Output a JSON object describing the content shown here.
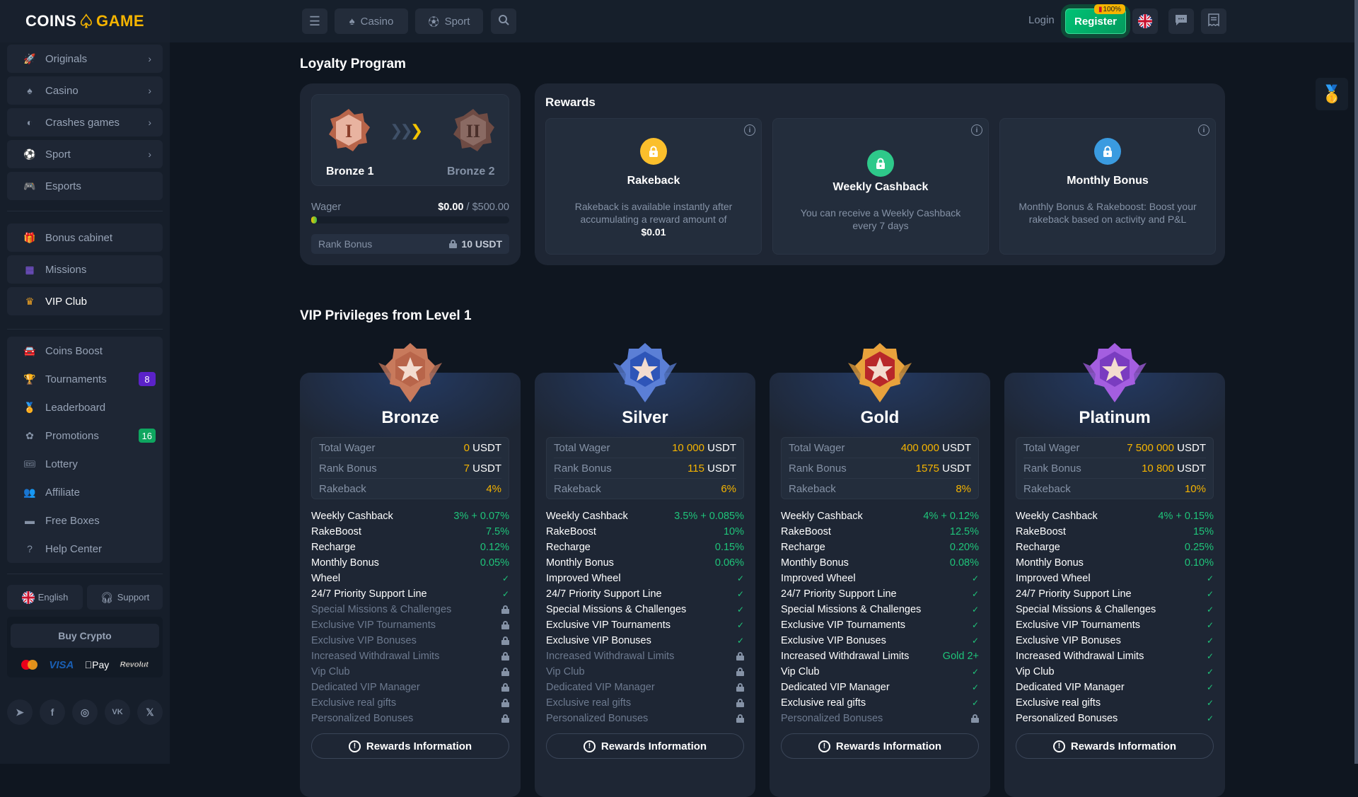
{
  "brand": {
    "left": "COINS",
    "right": "GAME"
  },
  "header": {
    "casino": "Casino",
    "sport": "Sport",
    "login": "Login",
    "register": "Register",
    "register_badge": "100%"
  },
  "sidebar": {
    "nav": [
      {
        "label": "Originals",
        "icon": "rocket-icon",
        "g": "🚀"
      },
      {
        "label": "Casino",
        "icon": "spade-icon",
        "g": "♠"
      },
      {
        "label": "Crashes games",
        "icon": "crash-icon",
        "g": "◐"
      },
      {
        "label": "Sport",
        "icon": "ball-icon",
        "g": "⚽"
      },
      {
        "label": "Esports",
        "icon": "gamepad-icon",
        "g": "🎮"
      }
    ],
    "nav2": [
      {
        "label": "Bonus cabinet",
        "icon": "gift-icon",
        "g": "🎁"
      },
      {
        "label": "Missions",
        "icon": "grid-icon",
        "g": "▦"
      },
      {
        "label": "VIP Club",
        "icon": "crown-icon",
        "g": "♛"
      }
    ],
    "nav3": [
      {
        "label": "Coins Boost",
        "icon": "car-icon",
        "g": "🚘"
      },
      {
        "label": "Tournaments",
        "icon": "tournament-icon",
        "g": "🏆",
        "badge": "8",
        "badge_color": "#5b22c9"
      },
      {
        "label": "Leaderboard",
        "icon": "medal-icon",
        "g": "🏅"
      },
      {
        "label": "Promotions",
        "icon": "promo-icon",
        "g": "✿",
        "badge": "16",
        "badge_color": "#0fa660"
      },
      {
        "label": "Lottery",
        "icon": "ticket-icon",
        "g": "🎟"
      },
      {
        "label": "Affiliate",
        "icon": "people-icon",
        "g": "👥"
      },
      {
        "label": "Free Boxes",
        "icon": "box-icon",
        "g": "▬"
      },
      {
        "label": "Help Center",
        "icon": "help-icon",
        "g": "?"
      }
    ],
    "language": "English",
    "support": "Support",
    "buy_crypto": "Buy Crypto",
    "payments": [
      "VISA",
      "Pay",
      "Revolut"
    ]
  },
  "loyalty": {
    "title": "Loyalty Program",
    "current_rank": "Bronze 1",
    "next_rank": "Bronze 2",
    "wager_label": "Wager",
    "wager_current": "$0.00",
    "wager_sep": " / ",
    "wager_target": "$500.00",
    "progress_percent": 0,
    "rank_bonus_label": "Rank Bonus",
    "rank_bonus_value": "10 USDT"
  },
  "rewards": {
    "title": "Rewards",
    "cards": [
      {
        "title": "Rakeback",
        "desc": "Rakeback is available instantly after accumulating a reward amount of",
        "amount": "$0.01",
        "color": "#fbbf2c"
      },
      {
        "title": "Weekly Cashback",
        "desc": "You can receive a Weekly Cashback every 7 days",
        "amount": "",
        "color": "#2ec98a"
      },
      {
        "title": "Monthly Bonus",
        "desc": "Monthly Bonus & Rakeboost: Boost your rakeback based on activity and P&L",
        "amount": "",
        "color": "#3a9be0"
      }
    ]
  },
  "vip": {
    "title": "VIP Privileges from Level 1",
    "rewards_info": "Rewards Information",
    "stat_labels": {
      "wager": "Total Wager",
      "bonus": "Rank Bonus",
      "rakeback": "Rakeback"
    },
    "unit": "USDT",
    "tiers": [
      {
        "name": "Bronze",
        "color": "#c87a5c",
        "wager": "0",
        "bonus": "7",
        "rakeback": "4%",
        "features": [
          [
            "Weekly Cashback",
            "3% + 0.07%"
          ],
          [
            "RakeBoost",
            "7.5%"
          ],
          [
            "Recharge",
            "0.12%"
          ],
          [
            "Monthly Bonus",
            "0.05%"
          ],
          [
            "Wheel",
            "check"
          ],
          [
            "24/7 Priority Support Line",
            "check"
          ],
          [
            "Special Missions & Challenges",
            "lock"
          ],
          [
            "Exclusive VIP Tournaments",
            "lock"
          ],
          [
            "Exclusive VIP Bonuses",
            "lock"
          ],
          [
            "Increased Withdrawal Limits",
            "lock"
          ],
          [
            "Vip Club",
            "lock"
          ],
          [
            "Dedicated VIP Manager",
            "lock"
          ],
          [
            "Exclusive real gifts",
            "lock"
          ],
          [
            "Personalized Bonuses",
            "lock"
          ]
        ]
      },
      {
        "name": "Silver",
        "color": "#5b7fd6",
        "wager": "10 000",
        "bonus": "115",
        "rakeback": "6%",
        "features": [
          [
            "Weekly Cashback",
            "3.5% + 0.085%"
          ],
          [
            "RakeBoost",
            "10%"
          ],
          [
            "Recharge",
            "0.15%"
          ],
          [
            "Monthly Bonus",
            "0.06%"
          ],
          [
            "Improved Wheel",
            "check"
          ],
          [
            "24/7 Priority Support Line",
            "check"
          ],
          [
            "Special Missions & Challenges",
            "check"
          ],
          [
            "Exclusive VIP Tournaments",
            "check"
          ],
          [
            "Exclusive VIP Bonuses",
            "check"
          ],
          [
            "Increased Withdrawal Limits",
            "lock"
          ],
          [
            "Vip Club",
            "lock"
          ],
          [
            "Dedicated VIP Manager",
            "lock"
          ],
          [
            "Exclusive real gifts",
            "lock"
          ],
          [
            "Personalized Bonuses",
            "lock"
          ]
        ]
      },
      {
        "name": "Gold",
        "color": "#e8a23c",
        "wager": "400 000",
        "bonus": "1575",
        "rakeback": "8%",
        "features": [
          [
            "Weekly Cashback",
            "4% + 0.12%"
          ],
          [
            "RakeBoost",
            "12.5%"
          ],
          [
            "Recharge",
            "0.20%"
          ],
          [
            "Monthly Bonus",
            "0.08%"
          ],
          [
            "Improved Wheel",
            "check"
          ],
          [
            "24/7 Priority Support Line",
            "check"
          ],
          [
            "Special Missions & Challenges",
            "check"
          ],
          [
            "Exclusive VIP Tournaments",
            "check"
          ],
          [
            "Exclusive VIP Bonuses",
            "check"
          ],
          [
            "Increased Withdrawal Limits",
            "Gold 2+"
          ],
          [
            "Vip Club",
            "check"
          ],
          [
            "Dedicated VIP Manager",
            "check"
          ],
          [
            "Exclusive real gifts",
            "check"
          ],
          [
            "Personalized Bonuses",
            "lock"
          ]
        ]
      },
      {
        "name": "Platinum",
        "color": "#a45ee0",
        "wager": "7 500 000",
        "bonus": "10 800",
        "rakeback": "10%",
        "features": [
          [
            "Weekly Cashback",
            "4% + 0.15%"
          ],
          [
            "RakeBoost",
            "15%"
          ],
          [
            "Recharge",
            "0.25%"
          ],
          [
            "Monthly Bonus",
            "0.10%"
          ],
          [
            "Improved Wheel",
            "check"
          ],
          [
            "24/7 Priority Support Line",
            "check"
          ],
          [
            "Special Missions & Challenges",
            "check"
          ],
          [
            "Exclusive VIP Tournaments",
            "check"
          ],
          [
            "Exclusive VIP Bonuses",
            "check"
          ],
          [
            "Increased Withdrawal Limits",
            "check"
          ],
          [
            "Vip Club",
            "check"
          ],
          [
            "Dedicated VIP Manager",
            "check"
          ],
          [
            "Exclusive real gifts",
            "check"
          ],
          [
            "Personalized Bonuses",
            "check"
          ]
        ]
      }
    ]
  },
  "colors": {
    "accent_green": "#1fc47a",
    "accent_yellow": "#f5b400",
    "register": "#00b86b"
  }
}
